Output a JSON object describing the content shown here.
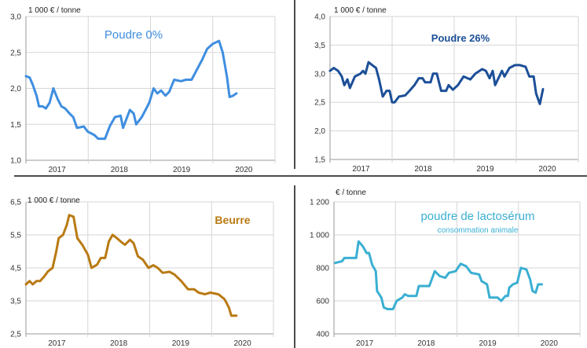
{
  "chart_data": [
    {
      "type": "line",
      "title": "Poudre 0%",
      "subtitle": "",
      "ylabel": "1 000 € / tonne",
      "ylim": [
        1.0,
        3.0
      ],
      "yticks": [
        "1,0",
        "1,5",
        "2,0",
        "2,5",
        "3,0"
      ],
      "ytick_values": [
        1.0,
        1.5,
        2.0,
        2.5,
        3.0
      ],
      "xlim": [
        2017,
        2021
      ],
      "xtick_labels": [
        "2017",
        "2018",
        "2019",
        "2020"
      ],
      "grid": true,
      "color": "#3f8ee0",
      "x": [
        2017.0,
        2017.06,
        2017.11,
        2017.17,
        2017.21,
        2017.27,
        2017.32,
        2017.38,
        2017.44,
        2017.51,
        2017.57,
        2017.63,
        2017.7,
        2017.76,
        2017.82,
        2017.93,
        2017.99,
        2018.1,
        2018.16,
        2018.27,
        2018.35,
        2018.43,
        2018.52,
        2018.56,
        2018.67,
        2018.73,
        2018.77,
        2018.86,
        2018.92,
        2018.98,
        2019.05,
        2019.11,
        2019.17,
        2019.24,
        2019.3,
        2019.38,
        2019.49,
        2019.57,
        2019.66,
        2019.74,
        2019.83,
        2019.91,
        2020.0,
        2020.1,
        2020.16,
        2020.23,
        2020.27,
        2020.33,
        2020.38
      ],
      "values": [
        2.17,
        2.15,
        2.05,
        1.9,
        1.75,
        1.75,
        1.72,
        1.8,
        2.0,
        1.85,
        1.75,
        1.72,
        1.65,
        1.6,
        1.45,
        1.47,
        1.4,
        1.35,
        1.3,
        1.3,
        1.48,
        1.6,
        1.62,
        1.45,
        1.7,
        1.65,
        1.5,
        1.6,
        1.7,
        1.8,
        2.0,
        1.93,
        1.97,
        1.9,
        1.95,
        2.12,
        2.1,
        2.12,
        2.12,
        2.25,
        2.4,
        2.55,
        2.62,
        2.66,
        2.5,
        2.15,
        1.88,
        1.9,
        1.93
      ]
    },
    {
      "type": "line",
      "title": "Poudre 26%",
      "subtitle": "",
      "ylabel": "1 000 € / tonne",
      "ylim": [
        1.5,
        4.0
      ],
      "yticks": [
        "1,5",
        "2,0",
        "2,5",
        "3,0",
        "3,5",
        "4,0"
      ],
      "ytick_values": [
        1.5,
        2.0,
        2.5,
        3.0,
        3.5,
        4.0
      ],
      "xlim": [
        2017,
        2021
      ],
      "xtick_labels": [
        "2017",
        "2018",
        "2019",
        "2020"
      ],
      "grid": true,
      "color": "#1c4f98",
      "x": [
        2017.0,
        2017.06,
        2017.13,
        2017.19,
        2017.23,
        2017.28,
        2017.32,
        2017.4,
        2017.49,
        2017.53,
        2017.57,
        2017.62,
        2017.68,
        2017.74,
        2017.79,
        2017.85,
        2017.91,
        2017.96,
        2018.0,
        2018.04,
        2018.11,
        2018.21,
        2018.28,
        2018.36,
        2018.43,
        2018.49,
        2018.53,
        2018.62,
        2018.66,
        2018.72,
        2018.79,
        2018.87,
        2018.91,
        2018.98,
        2019.06,
        2019.15,
        2019.26,
        2019.34,
        2019.45,
        2019.51,
        2019.57,
        2019.62,
        2019.66,
        2019.77,
        2019.81,
        2019.89,
        2019.98,
        2020.06,
        2020.15,
        2020.21,
        2020.28,
        2020.32,
        2020.38,
        2020.43
      ],
      "values": [
        3.05,
        3.1,
        3.05,
        2.95,
        2.8,
        2.9,
        2.75,
        2.95,
        3.0,
        3.05,
        3.0,
        3.2,
        3.15,
        3.1,
        2.9,
        2.6,
        2.7,
        2.7,
        2.5,
        2.5,
        2.6,
        2.62,
        2.7,
        2.8,
        2.92,
        2.92,
        2.85,
        2.85,
        3.0,
        3.0,
        2.7,
        2.7,
        2.8,
        2.72,
        2.8,
        2.95,
        2.9,
        3.0,
        3.08,
        3.05,
        2.92,
        3.05,
        2.8,
        3.05,
        2.95,
        3.1,
        3.15,
        3.15,
        3.12,
        2.95,
        2.95,
        2.65,
        2.47,
        2.73
      ]
    },
    {
      "type": "line",
      "title": "Beurre",
      "subtitle": "",
      "ylabel": "1 000 € / tonne",
      "ylim": [
        2.5,
        6.5
      ],
      "yticks": [
        "2,5",
        "3,5",
        "4,5",
        "5,5",
        "6,5"
      ],
      "ytick_values": [
        2.5,
        3.5,
        4.5,
        5.5,
        6.5
      ],
      "xlim": [
        2017,
        2021
      ],
      "xtick_labels": [
        "2017",
        "2018",
        "2019",
        "2020"
      ],
      "grid": true,
      "color": "#b97a12",
      "x": [
        2017.0,
        2017.06,
        2017.11,
        2017.17,
        2017.23,
        2017.3,
        2017.36,
        2017.43,
        2017.49,
        2017.53,
        2017.6,
        2017.66,
        2017.7,
        2017.77,
        2017.83,
        2017.91,
        2018.0,
        2018.06,
        2018.15,
        2018.21,
        2018.28,
        2018.34,
        2018.4,
        2018.47,
        2018.53,
        2018.6,
        2018.68,
        2018.74,
        2018.81,
        2018.89,
        2018.98,
        2019.06,
        2019.13,
        2019.21,
        2019.32,
        2019.4,
        2019.51,
        2019.62,
        2019.72,
        2019.79,
        2019.89,
        2019.98,
        2020.11,
        2020.21,
        2020.28,
        2020.32,
        2020.4
      ],
      "values": [
        4.0,
        4.1,
        4.0,
        4.1,
        4.1,
        4.25,
        4.4,
        4.5,
        5.0,
        5.4,
        5.5,
        5.8,
        6.1,
        6.05,
        5.4,
        5.2,
        4.9,
        4.5,
        4.6,
        4.8,
        4.8,
        5.3,
        5.5,
        5.4,
        5.3,
        5.2,
        5.35,
        5.25,
        4.85,
        4.75,
        4.5,
        4.58,
        4.5,
        4.35,
        4.38,
        4.3,
        4.1,
        3.85,
        3.85,
        3.75,
        3.7,
        3.75,
        3.7,
        3.55,
        3.3,
        3.05,
        3.05
      ]
    },
    {
      "type": "line",
      "title": "poudre de lactosérum",
      "subtitle": "consommation animale",
      "ylabel": "€ / tonne",
      "ylim": [
        400,
        1200
      ],
      "yticks": [
        "400",
        "600",
        "800",
        "1 000",
        "1 200"
      ],
      "ytick_values": [
        400,
        600,
        800,
        1000,
        1200
      ],
      "xlim": [
        2017,
        2021
      ],
      "xtick_labels": [
        "2017",
        "2018",
        "2019",
        "2020"
      ],
      "grid": true,
      "color": "#3aafd2",
      "x": [
        2017.02,
        2017.13,
        2017.17,
        2017.36,
        2017.4,
        2017.47,
        2017.53,
        2017.57,
        2017.62,
        2017.68,
        2017.7,
        2017.77,
        2017.81,
        2017.87,
        2017.96,
        2018.02,
        2018.11,
        2018.15,
        2018.21,
        2018.34,
        2018.38,
        2018.55,
        2018.64,
        2018.72,
        2018.81,
        2018.87,
        2018.98,
        2019.06,
        2019.15,
        2019.23,
        2019.36,
        2019.4,
        2019.49,
        2019.53,
        2019.66,
        2019.72,
        2019.79,
        2019.83,
        2019.85,
        2019.91,
        2019.98,
        2020.04,
        2020.13,
        2020.19,
        2020.23,
        2020.28,
        2020.32,
        2020.38
      ],
      "values": [
        830,
        840,
        860,
        860,
        960,
        930,
        890,
        890,
        820,
        780,
        660,
        620,
        560,
        550,
        550,
        600,
        620,
        640,
        630,
        630,
        690,
        690,
        780,
        750,
        740,
        770,
        780,
        825,
        810,
        770,
        760,
        720,
        700,
        620,
        620,
        600,
        630,
        630,
        680,
        700,
        710,
        800,
        790,
        730,
        660,
        650,
        700,
        700
      ]
    }
  ]
}
